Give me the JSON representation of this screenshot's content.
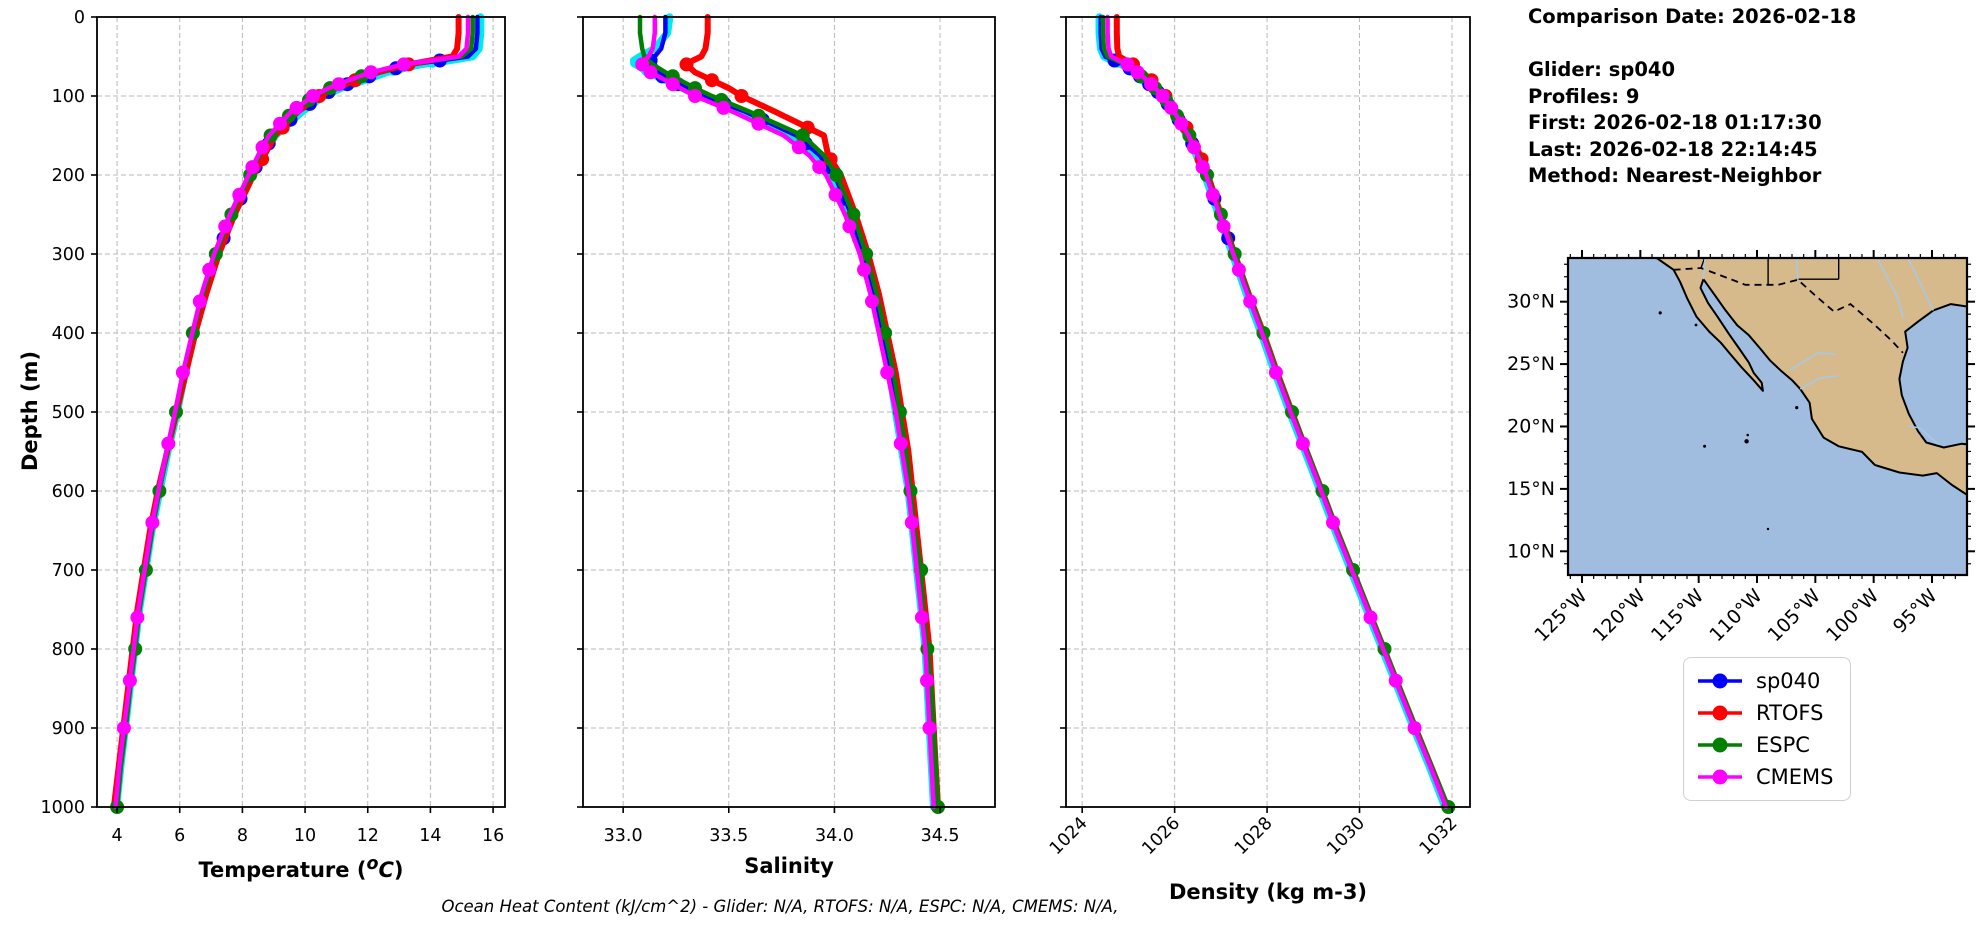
{
  "info": {
    "comparison_date": "Comparison Date: 2026-02-18",
    "glider": "Glider: sp040",
    "profiles": "Profiles: 9",
    "first": "First: 2026-02-18 01:17:30",
    "last": "Last: 2026-02-18 22:14:45",
    "method": "Method: Nearest-Neighbor"
  },
  "caption": "Ocean Heat Content (kJ/cm^2) - Glider: N/A,  RTOFS: N/A,  ESPC: N/A,  CMEMS: N/A,",
  "ylabel": "Depth (m)",
  "labels": {
    "temperature_pre": "Temperature (",
    "temperature_sup": "o",
    "temperature_unit": "C",
    "temperature_post": ")",
    "salinity": "Salinity",
    "density": "Density (kg m-3)"
  },
  "map": {
    "ocean_color": "#a0bde0",
    "land_color": "#d6ba8c",
    "river_color": "#a8c8e8",
    "lat_ticks": [
      30,
      25,
      20,
      15,
      10
    ],
    "lat_labels": [
      "30°N",
      "25°N",
      "20°N",
      "15°N",
      "10°N"
    ],
    "lon_ticks": [
      -125,
      -120,
      -115,
      -110,
      -105,
      -100,
      -95
    ],
    "lon_labels": [
      "125°W",
      "120°W",
      "115°W",
      "110°W",
      "105°W",
      "100°W",
      "95°W"
    ]
  },
  "chart_data": {
    "type": "line",
    "profile_orientation": "depth-vertical",
    "ylabel": "Depth (m)",
    "ylim": [
      0,
      1000
    ],
    "yticks": [
      0,
      100,
      200,
      300,
      400,
      500,
      600,
      700,
      800,
      900,
      1000
    ],
    "ytick_labels": [
      "0",
      "100",
      "200",
      "300",
      "400",
      "500",
      "600",
      "700",
      "800",
      "900",
      "1000"
    ],
    "grid": true,
    "depths": [
      0,
      20,
      40,
      50,
      55,
      60,
      70,
      80,
      90,
      100,
      120,
      150,
      175,
      200,
      250,
      300,
      350,
      400,
      450,
      500,
      550,
      600,
      650,
      700,
      750,
      800,
      850,
      900,
      950,
      1000
    ],
    "panels": [
      {
        "key": "temperature",
        "xlabel": "Temperature (°C)",
        "xlim": [
          3.36,
          16.38
        ],
        "xticks": [
          4,
          6,
          8,
          10,
          12,
          14,
          16
        ],
        "xtick_labels": [
          "4",
          "6",
          "8",
          "10",
          "12",
          "14",
          "16"
        ],
        "rotate_ticks": false
      },
      {
        "key": "salinity",
        "xlabel": "Salinity",
        "xlim": [
          32.81,
          34.76
        ],
        "xticks": [
          33.0,
          33.5,
          34.0,
          34.5
        ],
        "xtick_labels": [
          "33.0",
          "33.5",
          "34.0",
          "34.5"
        ],
        "rotate_ticks": false
      },
      {
        "key": "density",
        "xlabel": "Density (kg m-3)",
        "xlim": [
          1023.65,
          1032.39
        ],
        "xticks": [
          1024,
          1026,
          1028,
          1030,
          1032
        ],
        "xtick_labels": [
          "1024",
          "1026",
          "1028",
          "1030",
          "1032"
        ],
        "rotate_ticks": true
      }
    ],
    "series": [
      {
        "name": "sp040 profiles",
        "color": "#00e8f0",
        "in_legend": false,
        "line_width": 7.5,
        "marker_r": 5,
        "marker_depths": [
          58,
          68,
          78
        ],
        "values": {
          "temperature": [
            15.6,
            15.6,
            15.55,
            15.35,
            14.6,
            13.7,
            12.6,
            11.9,
            11.15,
            10.6,
            9.9,
            9.05,
            8.65,
            8.33,
            7.72,
            7.22,
            6.82,
            6.47,
            6.17,
            5.92,
            5.62,
            5.36,
            5.11,
            4.91,
            4.71,
            4.56,
            4.41,
            4.26,
            4.11,
            3.98
          ],
          "salinity": [
            33.22,
            33.21,
            33.15,
            33.08,
            33.05,
            33.06,
            33.12,
            33.2,
            33.28,
            33.36,
            33.56,
            33.8,
            33.92,
            33.99,
            34.07,
            34.13,
            34.18,
            34.22,
            34.26,
            34.29,
            34.32,
            34.35,
            34.37,
            34.39,
            34.41,
            34.43,
            34.44,
            34.45,
            34.46,
            34.47
          ],
          "density": [
            1024.37,
            1024.37,
            1024.4,
            1024.47,
            1024.65,
            1024.85,
            1025.1,
            1025.3,
            1025.5,
            1025.68,
            1025.95,
            1026.27,
            1026.47,
            1026.65,
            1026.95,
            1027.25,
            1027.55,
            1027.87,
            1028.17,
            1028.49,
            1028.82,
            1029.15,
            1029.47,
            1029.81,
            1030.15,
            1030.49,
            1030.83,
            1031.17,
            1031.52,
            1031.85
          ]
        }
      },
      {
        "name": "sp040",
        "color": "#0000ff",
        "in_legend": true,
        "line_width": 4.5,
        "marker_r": 7,
        "marker_depths": [
          55,
          65,
          75,
          85,
          95,
          110,
          130,
          160,
          190,
          230,
          280
        ],
        "values": {
          "temperature": [
            15.5,
            15.5,
            15.45,
            15.2,
            14.3,
            13.4,
            12.4,
            11.7,
            11.0,
            10.5,
            9.8,
            9.0,
            8.6,
            8.3,
            7.7,
            7.2,
            6.8,
            6.45,
            6.15,
            5.9,
            5.6,
            5.35,
            5.1,
            4.9,
            4.7,
            4.55,
            4.4,
            4.25,
            4.1,
            3.97
          ],
          "salinity": [
            33.2,
            33.2,
            33.18,
            33.15,
            33.13,
            33.12,
            33.15,
            33.22,
            33.3,
            33.38,
            33.58,
            33.82,
            33.93,
            34.0,
            34.08,
            34.14,
            34.19,
            34.23,
            34.27,
            34.3,
            34.33,
            34.36,
            34.38,
            34.4,
            34.42,
            34.44,
            34.45,
            34.46,
            34.47,
            34.48
          ],
          "density": [
            1024.4,
            1024.4,
            1024.42,
            1024.5,
            1024.7,
            1024.9,
            1025.15,
            1025.35,
            1025.55,
            1025.72,
            1025.98,
            1026.3,
            1026.5,
            1026.68,
            1026.98,
            1027.28,
            1027.58,
            1027.9,
            1028.2,
            1028.52,
            1028.85,
            1029.18,
            1029.5,
            1029.84,
            1030.18,
            1030.52,
            1030.86,
            1031.2,
            1031.55,
            1031.88
          ]
        }
      },
      {
        "name": "RTOFS",
        "color": "#ff0000",
        "in_legend": true,
        "line_width": 6,
        "marker_r": 7,
        "marker_depths": [
          60,
          80,
          100,
          140,
          180
        ],
        "values": {
          "temperature": [
            14.9,
            14.9,
            14.85,
            14.7,
            14.0,
            13.3,
            12.3,
            11.6,
            11.0,
            10.45,
            9.75,
            9.05,
            8.7,
            8.35,
            7.75,
            7.25,
            6.85,
            6.5,
            6.2,
            5.9,
            5.6,
            5.3,
            5.05,
            4.85,
            4.65,
            4.5,
            4.35,
            4.2,
            4.05,
            3.9
          ],
          "salinity": [
            33.4,
            33.4,
            33.39,
            33.37,
            33.33,
            33.3,
            33.34,
            33.42,
            33.5,
            33.56,
            33.72,
            33.95,
            33.97,
            34.03,
            34.1,
            34.16,
            34.21,
            34.25,
            34.29,
            34.32,
            34.35,
            34.37,
            34.39,
            34.41,
            34.43,
            34.45,
            34.46,
            34.47,
            34.48,
            34.49
          ],
          "density": [
            1024.75,
            1024.75,
            1024.76,
            1024.8,
            1024.95,
            1025.1,
            1025.3,
            1025.5,
            1025.65,
            1025.8,
            1026.05,
            1026.36,
            1026.55,
            1026.72,
            1027.0,
            1027.3,
            1027.6,
            1027.92,
            1028.22,
            1028.54,
            1028.86,
            1029.19,
            1029.51,
            1029.85,
            1030.19,
            1030.53,
            1030.87,
            1031.21,
            1031.56,
            1031.9
          ]
        }
      },
      {
        "name": "ESPC",
        "color": "#008000",
        "in_legend": true,
        "line_width": 4.5,
        "marker_r": 7,
        "marker_depths": [
          75,
          90,
          105,
          125,
          150,
          200,
          250,
          300,
          400,
          500,
          600,
          700,
          800,
          1000
        ],
        "values": {
          "temperature": [
            15.35,
            15.35,
            15.3,
            15.0,
            14.1,
            13.2,
            12.15,
            11.45,
            10.8,
            10.3,
            9.6,
            8.9,
            8.55,
            8.25,
            7.65,
            7.15,
            6.75,
            6.42,
            6.12,
            5.88,
            5.6,
            5.35,
            5.12,
            4.92,
            4.72,
            4.58,
            4.42,
            4.28,
            4.12,
            4.0
          ],
          "salinity": [
            33.08,
            33.08,
            33.09,
            33.1,
            33.12,
            33.14,
            33.2,
            33.27,
            33.34,
            33.42,
            33.6,
            33.85,
            33.95,
            34.01,
            34.09,
            34.15,
            34.2,
            34.24,
            34.28,
            34.31,
            34.34,
            34.36,
            34.38,
            34.41,
            34.42,
            34.44,
            34.46,
            34.47,
            34.48,
            34.49
          ],
          "density": [
            1024.45,
            1024.45,
            1024.47,
            1024.55,
            1024.74,
            1024.94,
            1025.18,
            1025.38,
            1025.58,
            1025.75,
            1026.0,
            1026.32,
            1026.52,
            1026.7,
            1027.0,
            1027.3,
            1027.6,
            1027.92,
            1028.22,
            1028.54,
            1028.87,
            1029.2,
            1029.52,
            1029.86,
            1030.2,
            1030.54,
            1030.88,
            1031.22,
            1031.57,
            1031.92
          ]
        }
      },
      {
        "name": "CMEMS",
        "color": "#ff00ff",
        "in_legend": true,
        "line_width": 4.5,
        "marker_r": 7,
        "marker_depths": [
          60,
          70,
          85,
          100,
          115,
          135,
          165,
          190,
          225,
          265,
          320,
          360,
          450,
          540,
          640,
          760,
          840,
          900
        ],
        "values": {
          "temperature": [
            15.2,
            15.2,
            15.15,
            14.9,
            14.05,
            13.15,
            12.1,
            11.4,
            10.75,
            10.25,
            9.55,
            8.85,
            8.5,
            8.2,
            7.6,
            7.1,
            6.7,
            6.4,
            6.1,
            5.85,
            5.58,
            5.32,
            5.08,
            4.88,
            4.68,
            4.53,
            4.38,
            4.22,
            4.07,
            3.95
          ],
          "salinity": [
            33.15,
            33.15,
            33.14,
            33.12,
            33.1,
            33.09,
            33.13,
            33.2,
            33.27,
            33.34,
            33.52,
            33.76,
            33.88,
            33.96,
            34.05,
            34.12,
            34.17,
            34.21,
            34.25,
            34.29,
            34.32,
            34.35,
            34.37,
            34.39,
            34.41,
            34.43,
            34.44,
            34.45,
            34.46,
            34.47
          ],
          "density": [
            1024.55,
            1024.55,
            1024.57,
            1024.63,
            1024.8,
            1024.98,
            1025.2,
            1025.4,
            1025.58,
            1025.74,
            1025.99,
            1026.3,
            1026.5,
            1026.68,
            1026.97,
            1027.27,
            1027.57,
            1027.89,
            1028.19,
            1028.51,
            1028.84,
            1029.17,
            1029.49,
            1029.83,
            1030.17,
            1030.51,
            1030.85,
            1031.19,
            1031.54,
            1031.87
          ]
        }
      }
    ]
  }
}
